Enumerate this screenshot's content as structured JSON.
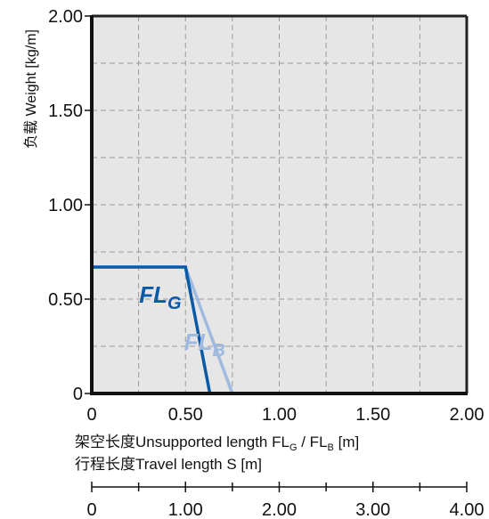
{
  "chart_data": {
    "type": "line",
    "ylabel": "负载 Weight  [kg/m]",
    "xlabel_line1_prefix": "架空长度Unsupported length FL",
    "xlabel_line1_sub1": "G",
    "xlabel_line1_mid": " / FL",
    "xlabel_line1_sub2": "B",
    "xlabel_line1_suffix": " [m]",
    "xlabel_line2": "行程长度Travel length S [m]",
    "xlim": [
      0,
      2.0
    ],
    "ylim": [
      0,
      2.0
    ],
    "grid": true,
    "y_ticks": [
      "0",
      "0.50",
      "1.00",
      "1.50",
      "2.00"
    ],
    "x_ticks": [
      "0",
      "0.50",
      "1.00",
      "1.50",
      "2.00"
    ],
    "secondary_axis": {
      "xlim": [
        0,
        4.0
      ],
      "ticks": [
        "0",
        "1.00",
        "2.00",
        "3.00",
        "4.00"
      ]
    },
    "series": [
      {
        "name_main": "FL",
        "name_sub": "G",
        "color": "#0a5aa8",
        "label_anchor": [
          0.5,
          0.5
        ],
        "points": [
          [
            0,
            0.67
          ],
          [
            0.5,
            0.67
          ],
          [
            0.63,
            0
          ]
        ]
      },
      {
        "name_main": "FL",
        "name_sub": "B",
        "color": "#9fb9df",
        "label_anchor": [
          0.74,
          0.25
        ],
        "points": [
          [
            0,
            0.67
          ],
          [
            0.5,
            0.67
          ],
          [
            0.75,
            0
          ]
        ]
      }
    ]
  }
}
